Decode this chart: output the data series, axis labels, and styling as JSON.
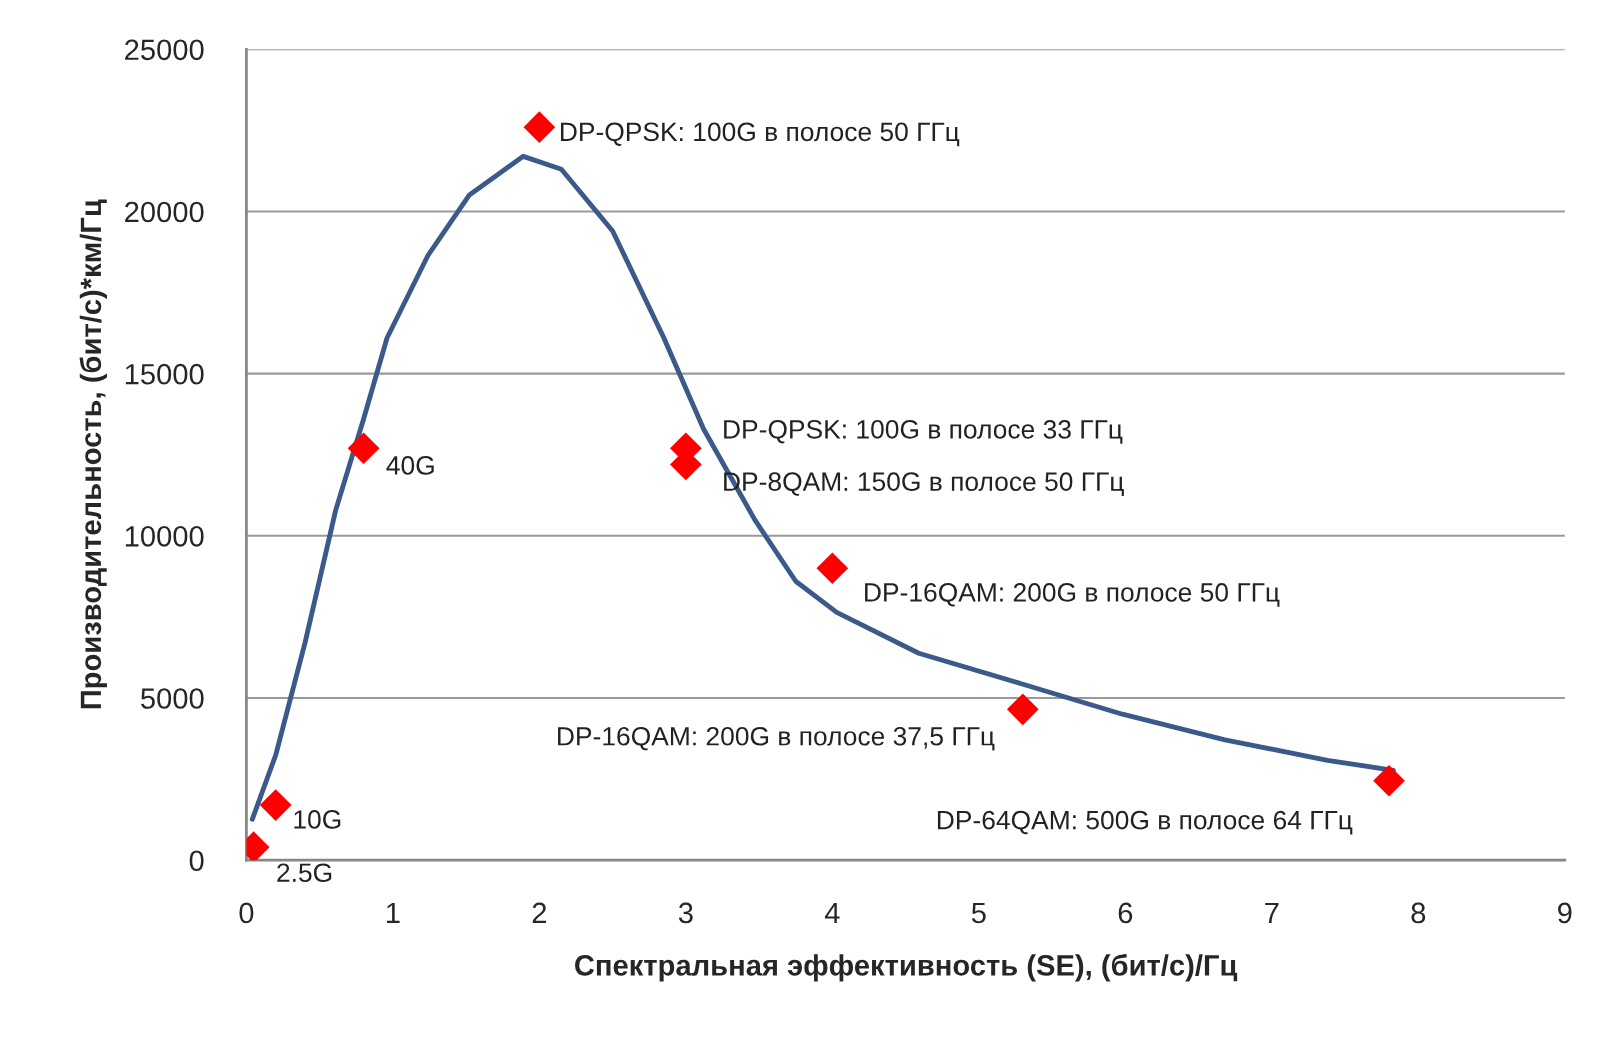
{
  "chart_data": {
    "type": "scatter",
    "xlabel": "Спектральная эффективность (SE), (бит/с)/Гц",
    "ylabel": "Производительность, (бит/с)*км/Гц",
    "xlim": [
      0,
      9
    ],
    "xticks": [
      0,
      1,
      2,
      3,
      4,
      5,
      6,
      7,
      8,
      9
    ],
    "ylim": [
      0,
      25000
    ],
    "yticks": [
      0,
      5000,
      10000,
      15000,
      20000,
      25000
    ],
    "grid": "y",
    "legend": false,
    "series": [
      {
        "type": "line",
        "color": "#3b5a8a",
        "marker": "none",
        "line_style": "solid",
        "x": [
          0.04,
          0.2,
          0.4,
          0.61,
          0.8,
          0.96,
          1.24,
          1.52,
          1.89,
          2.15,
          2.5,
          2.85,
          3.12,
          3.47,
          3.75,
          4.03,
          4.59,
          5.29,
          5.98,
          6.68,
          7.38,
          7.83
        ],
        "values": [
          1260,
          3240,
          6700,
          10800,
          13600,
          16100,
          18650,
          20500,
          21700,
          21300,
          19400,
          16100,
          13300,
          10500,
          8600,
          7640,
          6380,
          5440,
          4500,
          3710,
          3080,
          2770
        ]
      },
      {
        "color": "#ff0000",
        "marker": "diamond",
        "x": [
          0.05,
          0.2,
          0.8,
          2.0,
          3.0,
          3.0,
          4.0,
          5.3,
          7.8
        ],
        "values": [
          400,
          1700,
          12700,
          22600,
          12700,
          12200,
          9000,
          4650,
          2450
        ]
      }
    ],
    "annotations": [
      {
        "text": "2.5G",
        "x": 0.05,
        "y": 400
      },
      {
        "text": "10G",
        "x": 0.2,
        "y": 1700
      },
      {
        "text": "40G",
        "x": 0.8,
        "y": 12700
      },
      {
        "text": "DP-QPSK: 100G в полосе 50 ГГц",
        "x": 2.0,
        "y": 22600
      },
      {
        "text": "DP-QPSK: 100G в полосе 33 ГГц",
        "x": 3.0,
        "y": 12700
      },
      {
        "text": "DP-8QAM: 150G в полосе 50 ГГц",
        "x": 3.0,
        "y": 12200
      },
      {
        "text": "DP-16QAM: 200G в полосе 50 ГГц",
        "x": 4.0,
        "y": 9000
      },
      {
        "text": "DP-16QAM: 200G в полосе 37,5 ГГц",
        "x": 5.3,
        "y": 4650
      },
      {
        "text": "DP-64QAM: 500G в полосе 64 ГГц",
        "x": 7.8,
        "y": 2450
      }
    ]
  }
}
